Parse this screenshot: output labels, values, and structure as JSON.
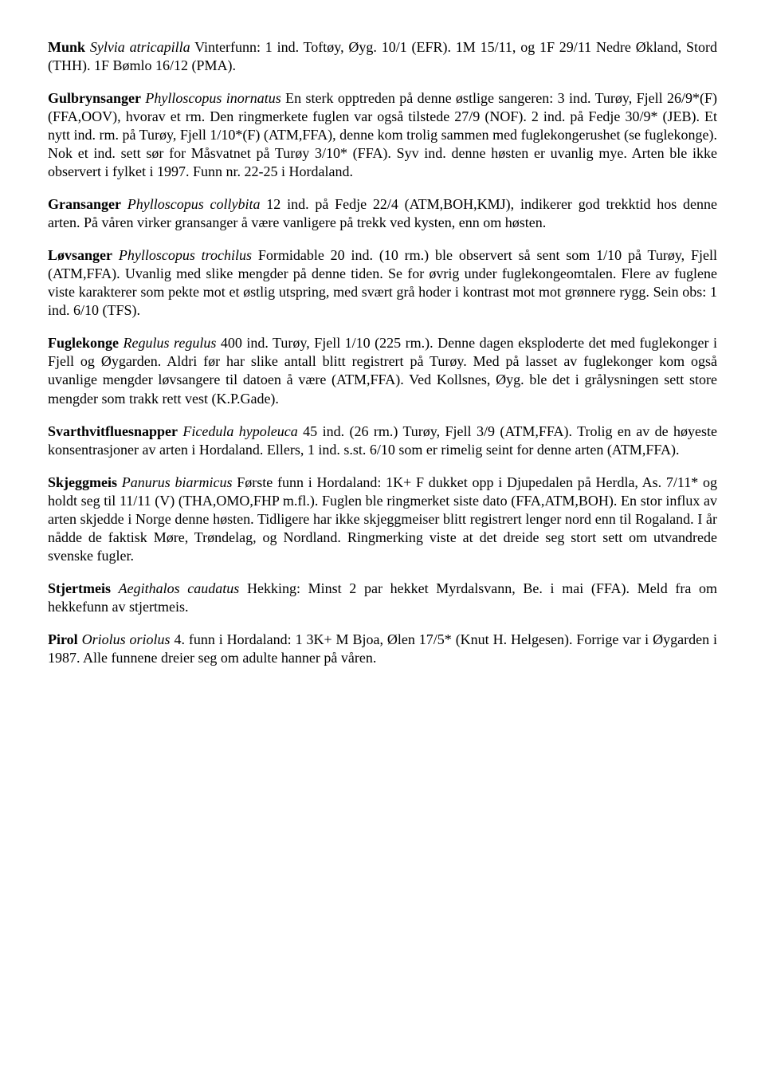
{
  "entries": [
    {
      "species": "Munk",
      "latin": "Sylvia atricapilla",
      "text": "  Vinterfunn: 1 ind. Toftøy, Øyg. 10/1 (EFR). 1M 15/11, og 1F 29/11 Nedre Økland, Stord (THH). 1F Bømlo 16/12 (PMA)."
    },
    {
      "species": "Gulbrynsanger",
      "latin": "Phylloscopus inornatus",
      "text": "  En sterk opptreden på denne østlige sangeren: 3 ind. Turøy, Fjell 26/9*(F) (FFA,OOV), hvorav et rm. Den ringmerkete fuglen var også tilstede 27/9 (NOF). 2 ind. på Fedje 30/9* (JEB). Et nytt ind. rm. på Turøy, Fjell 1/10*(F) (ATM,FFA), denne kom trolig sammen med fuglekongerushet (se fuglekonge). Nok et ind. sett sør for Måsvatnet på Turøy 3/10* (FFA). Syv ind. denne høsten er uvanlig mye. Arten ble ikke observert i fylket i 1997. Funn nr. 22-25 i Hordaland."
    },
    {
      "species": "Gransanger",
      "latin": "Phylloscopus collybita",
      "text": "  12 ind. på Fedje 22/4 (ATM,BOH,KMJ), indikerer god trekktid hos denne arten. På våren virker gransanger å være vanligere på trekk ved kysten, enn om høsten."
    },
    {
      "species": "Løvsanger",
      "latin": "Phylloscopus trochilus",
      "text": "  Formidable 20 ind. (10 rm.) ble observert så sent som 1/10 på Turøy, Fjell (ATM,FFA). Uvanlig med slike mengder på denne tiden. Se for øvrig under fuglekongeomtalen. Flere av fuglene viste karakterer som pekte mot et østlig utspring, med svært grå hoder i kontrast mot mot grønnere rygg. Sein obs: 1 ind. 6/10 (TFS)."
    },
    {
      "species": "Fuglekonge",
      "latin": "Regulus regulus",
      "text": "  400 ind. Turøy, Fjell 1/10 (225 rm.). Denne dagen eksploderte det med fuglekonger i Fjell og Øygarden. Aldri før har slike antall blitt registrert på Turøy. Med på lasset av fuglekonger kom også uvanlige mengder løvsangere til datoen å være (ATM,FFA). Ved Kollsnes, Øyg. ble det i grålysningen sett store mengder som trakk rett vest (K.P.Gade)."
    },
    {
      "species": "Svarthvitfluesnapper",
      "latin": "Ficedula hypoleuca",
      "text": "  45 ind. (26 rm.) Turøy, Fjell 3/9 (ATM,FFA). Trolig en av de høyeste konsentrasjoner av arten i Hordaland. Ellers, 1 ind. s.st. 6/10 som er rimelig seint for denne arten (ATM,FFA)."
    },
    {
      "species": "Skjeggmeis",
      "latin": "Panurus biarmicus",
      "text": "  Første funn i Hordaland: 1K+ F dukket opp i Djupedalen på Herdla, As. 7/11* og holdt seg til 11/11 (V) (THA,OMO,FHP m.fl.). Fuglen ble ringmerket siste dato (FFA,ATM,BOH). En stor influx av arten skjedde i Norge denne høsten. Tidligere har ikke skjeggmeiser blitt registrert lenger nord enn til Rogaland. I år nådde de faktisk Møre, Trøndelag, og Nordland. Ringmerking viste at det dreide seg stort sett om utvandrede svenske fugler."
    },
    {
      "species": "Stjertmeis",
      "latin": "Aegithalos caudatus",
      "text": "  Hekking: Minst 2 par hekket Myrdalsvann, Be. i mai (FFA). Meld fra om hekkefunn av stjertmeis."
    },
    {
      "species": "Pirol",
      "latin": "Oriolus oriolus",
      "text": "  4. funn i Hordaland: 1 3K+ M Bjoa, Ølen 17/5* (Knut H. Helgesen). Forrige var i Øygarden i 1987. Alle funnene dreier seg om adulte hanner på våren."
    }
  ]
}
